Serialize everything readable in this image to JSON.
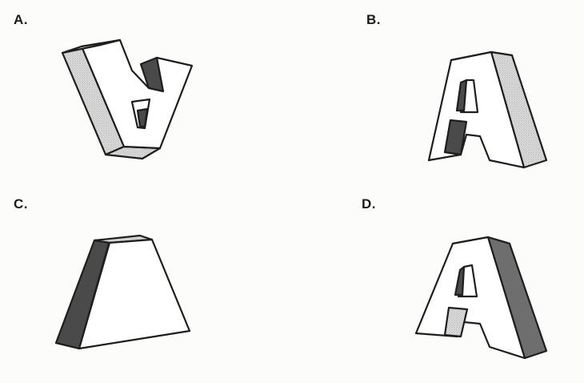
{
  "options": [
    {
      "id": "a",
      "label": "A."
    },
    {
      "id": "b",
      "label": "B."
    },
    {
      "id": "c",
      "label": "C."
    },
    {
      "id": "d",
      "label": "D."
    }
  ],
  "colors": {
    "outline": "#1e1e1e",
    "face": "#ffffff",
    "shade_light": "#d4d4d4",
    "shade_dark": "#4a4a4a"
  }
}
